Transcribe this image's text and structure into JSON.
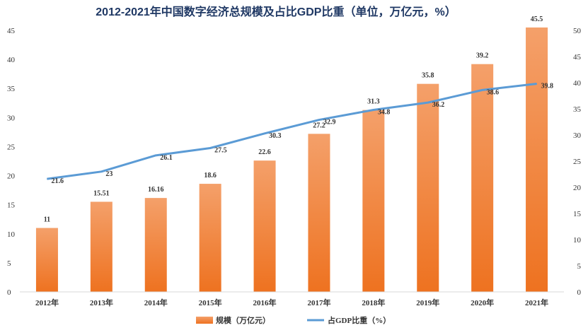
{
  "chart_data": {
    "type": "bar",
    "title": "2012-2021年中国数字经济总规模及占比GDP比重（单位，万亿元，%）",
    "categories": [
      "2012年",
      "2013年",
      "2014年",
      "2015年",
      "2016年",
      "2017年",
      "2018年",
      "2019年",
      "2020年",
      "2021年"
    ],
    "series": [
      {
        "name": "规模（万亿元）",
        "type": "bar",
        "axis": "left",
        "color": "#f07d2a",
        "values": [
          11,
          15.51,
          16.16,
          18.6,
          22.6,
          27.2,
          31.3,
          35.8,
          39.2,
          45.5
        ],
        "labels": [
          "11",
          "15.51",
          "16.16",
          "18.6",
          "22.6",
          "27.2",
          "31.3",
          "35.8",
          "39.2",
          "45.5"
        ]
      },
      {
        "name": "占GDP比重（%）",
        "type": "line",
        "axis": "right",
        "color": "#5b9bd5",
        "values": [
          21.6,
          23,
          26.1,
          27.5,
          30.3,
          32.9,
          34.8,
          36.2,
          38.6,
          39.8
        ],
        "labels": [
          "21.6",
          "23",
          "26.1",
          "27.5",
          "30.3",
          "32.9",
          "34.8",
          "36.2",
          "38.6",
          "39.8"
        ]
      }
    ],
    "ylim_left": [
      0,
      45
    ],
    "yticks_left": [
      "0",
      "5",
      "10",
      "15",
      "20",
      "25",
      "30",
      "35",
      "40",
      "45"
    ],
    "ylim_right": [
      0,
      50
    ],
    "yticks_right": [
      "0",
      "5",
      "10",
      "15",
      "20",
      "25",
      "30",
      "35",
      "40",
      "45",
      "50"
    ],
    "grid": false,
    "legend_position": "bottom"
  }
}
